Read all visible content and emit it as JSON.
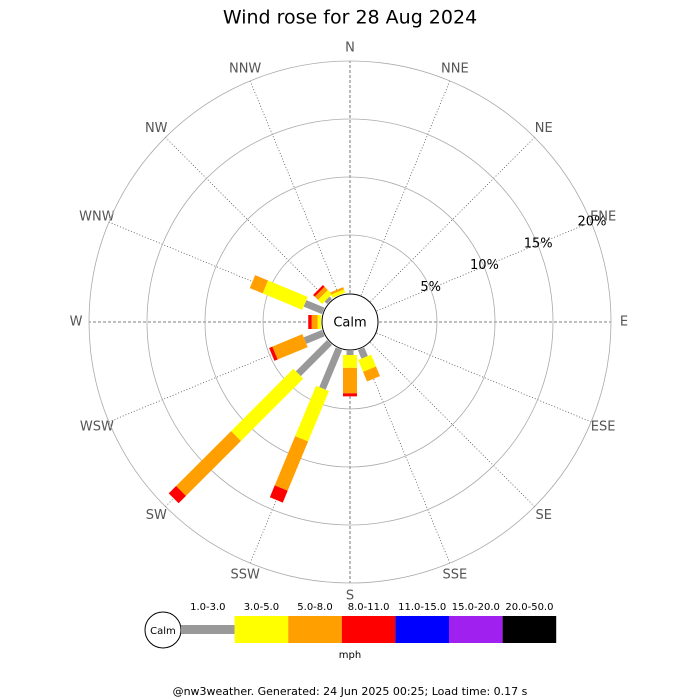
{
  "chart_data": {
    "type": "windrose",
    "title": "Wind rose for 28 Aug 2024",
    "center_label": "Calm",
    "legend_unit": "mph",
    "footer": "@nw3weather. Generated: 24 Jun 2025 00:25; Load time: 0.17 s",
    "categories": [
      "N",
      "NNE",
      "NE",
      "ENE",
      "E",
      "ESE",
      "SE",
      "SSE",
      "S",
      "SSW",
      "SW",
      "WSW",
      "W",
      "WNW",
      "NW",
      "NNW"
    ],
    "rlim": [
      0,
      20
    ],
    "rticks": [
      {
        "value": 5,
        "label": "5%"
      },
      {
        "value": 10,
        "label": "10%"
      },
      {
        "value": 15,
        "label": "15%"
      },
      {
        "value": 20,
        "label": "20%"
      }
    ],
    "series": [
      {
        "name": "1.0-3.0",
        "color": "#999999",
        "values": [
          0,
          0,
          0,
          0,
          0,
          0,
          0,
          0.8,
          0.35,
          3.7,
          3.8,
          1.7,
          0,
          1.7,
          0.3,
          0
        ]
      },
      {
        "name": "3.0-5.0",
        "color": "#ffff00",
        "values": [
          0,
          0,
          0,
          0,
          0,
          0,
          0,
          1.1,
          1.1,
          4.7,
          7.6,
          0,
          0.3,
          3.7,
          0.5,
          0.3
        ]
      },
      {
        "name": "5.0-8.0",
        "color": "#ffa000",
        "values": [
          0,
          0,
          0,
          0,
          0,
          0,
          0,
          0.9,
          2.2,
          4.6,
          6.7,
          2.8,
          0.5,
          1.2,
          0.4,
          0.2
        ]
      },
      {
        "name": "8.0-11.0",
        "color": "#ff0000",
        "values": [
          0,
          0,
          0,
          0,
          0,
          0,
          0,
          0,
          0.26,
          1.1,
          0.9,
          0.3,
          0.3,
          0,
          0.2,
          0
        ]
      },
      {
        "name": "11.0-15.0",
        "color": "#0000ff",
        "values": [
          0,
          0,
          0,
          0,
          0,
          0,
          0,
          0,
          0,
          0,
          0,
          0,
          0,
          0,
          0,
          0
        ]
      },
      {
        "name": "15.0-20.0",
        "color": "#a020f0",
        "values": [
          0,
          0,
          0,
          0,
          0,
          0,
          0,
          0,
          0,
          0,
          0,
          0,
          0,
          0,
          0,
          0
        ]
      },
      {
        "name": "20.0-50.0",
        "color": "#000000",
        "values": [
          0,
          0,
          0,
          0,
          0,
          0,
          0,
          0,
          0,
          0,
          0,
          0,
          0,
          0,
          0,
          0
        ]
      }
    ]
  }
}
